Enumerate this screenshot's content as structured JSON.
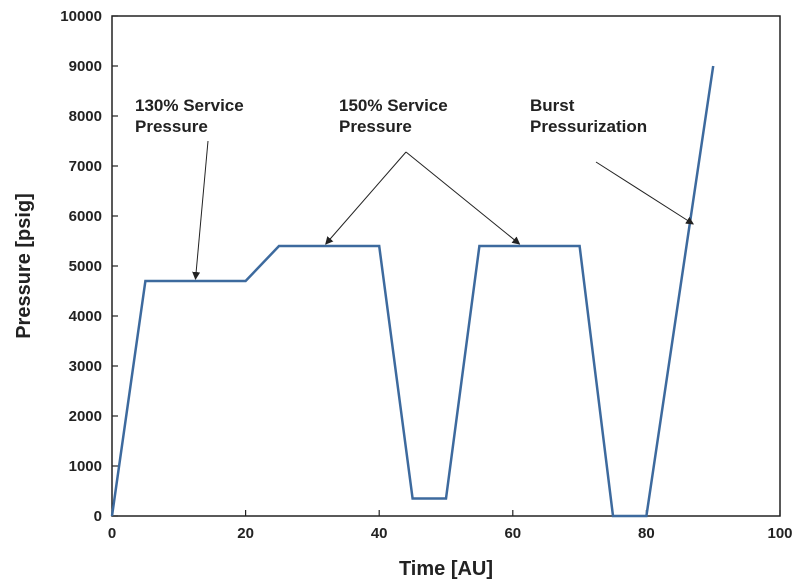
{
  "chart_data": {
    "type": "line",
    "title": "",
    "xlabel": "Time [AU]",
    "ylabel": "Pressure [psig]",
    "xlim": [
      0,
      100
    ],
    "ylim": [
      0,
      10000
    ],
    "xticks": [
      0,
      20,
      40,
      60,
      80,
      100
    ],
    "yticks": [
      0,
      1000,
      2000,
      3000,
      4000,
      5000,
      6000,
      7000,
      8000,
      9000,
      10000
    ],
    "grid": false,
    "legend": "none",
    "line_color": "#3d6a9e",
    "series": [
      {
        "x": [
          0,
          5,
          20,
          25,
          40,
          45,
          50,
          55,
          70,
          75,
          80,
          90
        ],
        "y": [
          0,
          4700,
          4700,
          5400,
          5400,
          350,
          350,
          5400,
          5400,
          0,
          0,
          9000
        ]
      }
    ],
    "annotations": [
      {
        "lines": [
          "130% Service",
          "Pressure"
        ],
        "targets": [
          [
            12.5,
            4700
          ]
        ]
      },
      {
        "lines": [
          "150% Service",
          "Pressure"
        ],
        "targets": [
          [
            32,
            5400
          ],
          [
            61,
            5400
          ]
        ]
      },
      {
        "lines": [
          "Burst",
          "Pressurization"
        ],
        "targets": [
          [
            87,
            5800
          ]
        ]
      }
    ]
  }
}
